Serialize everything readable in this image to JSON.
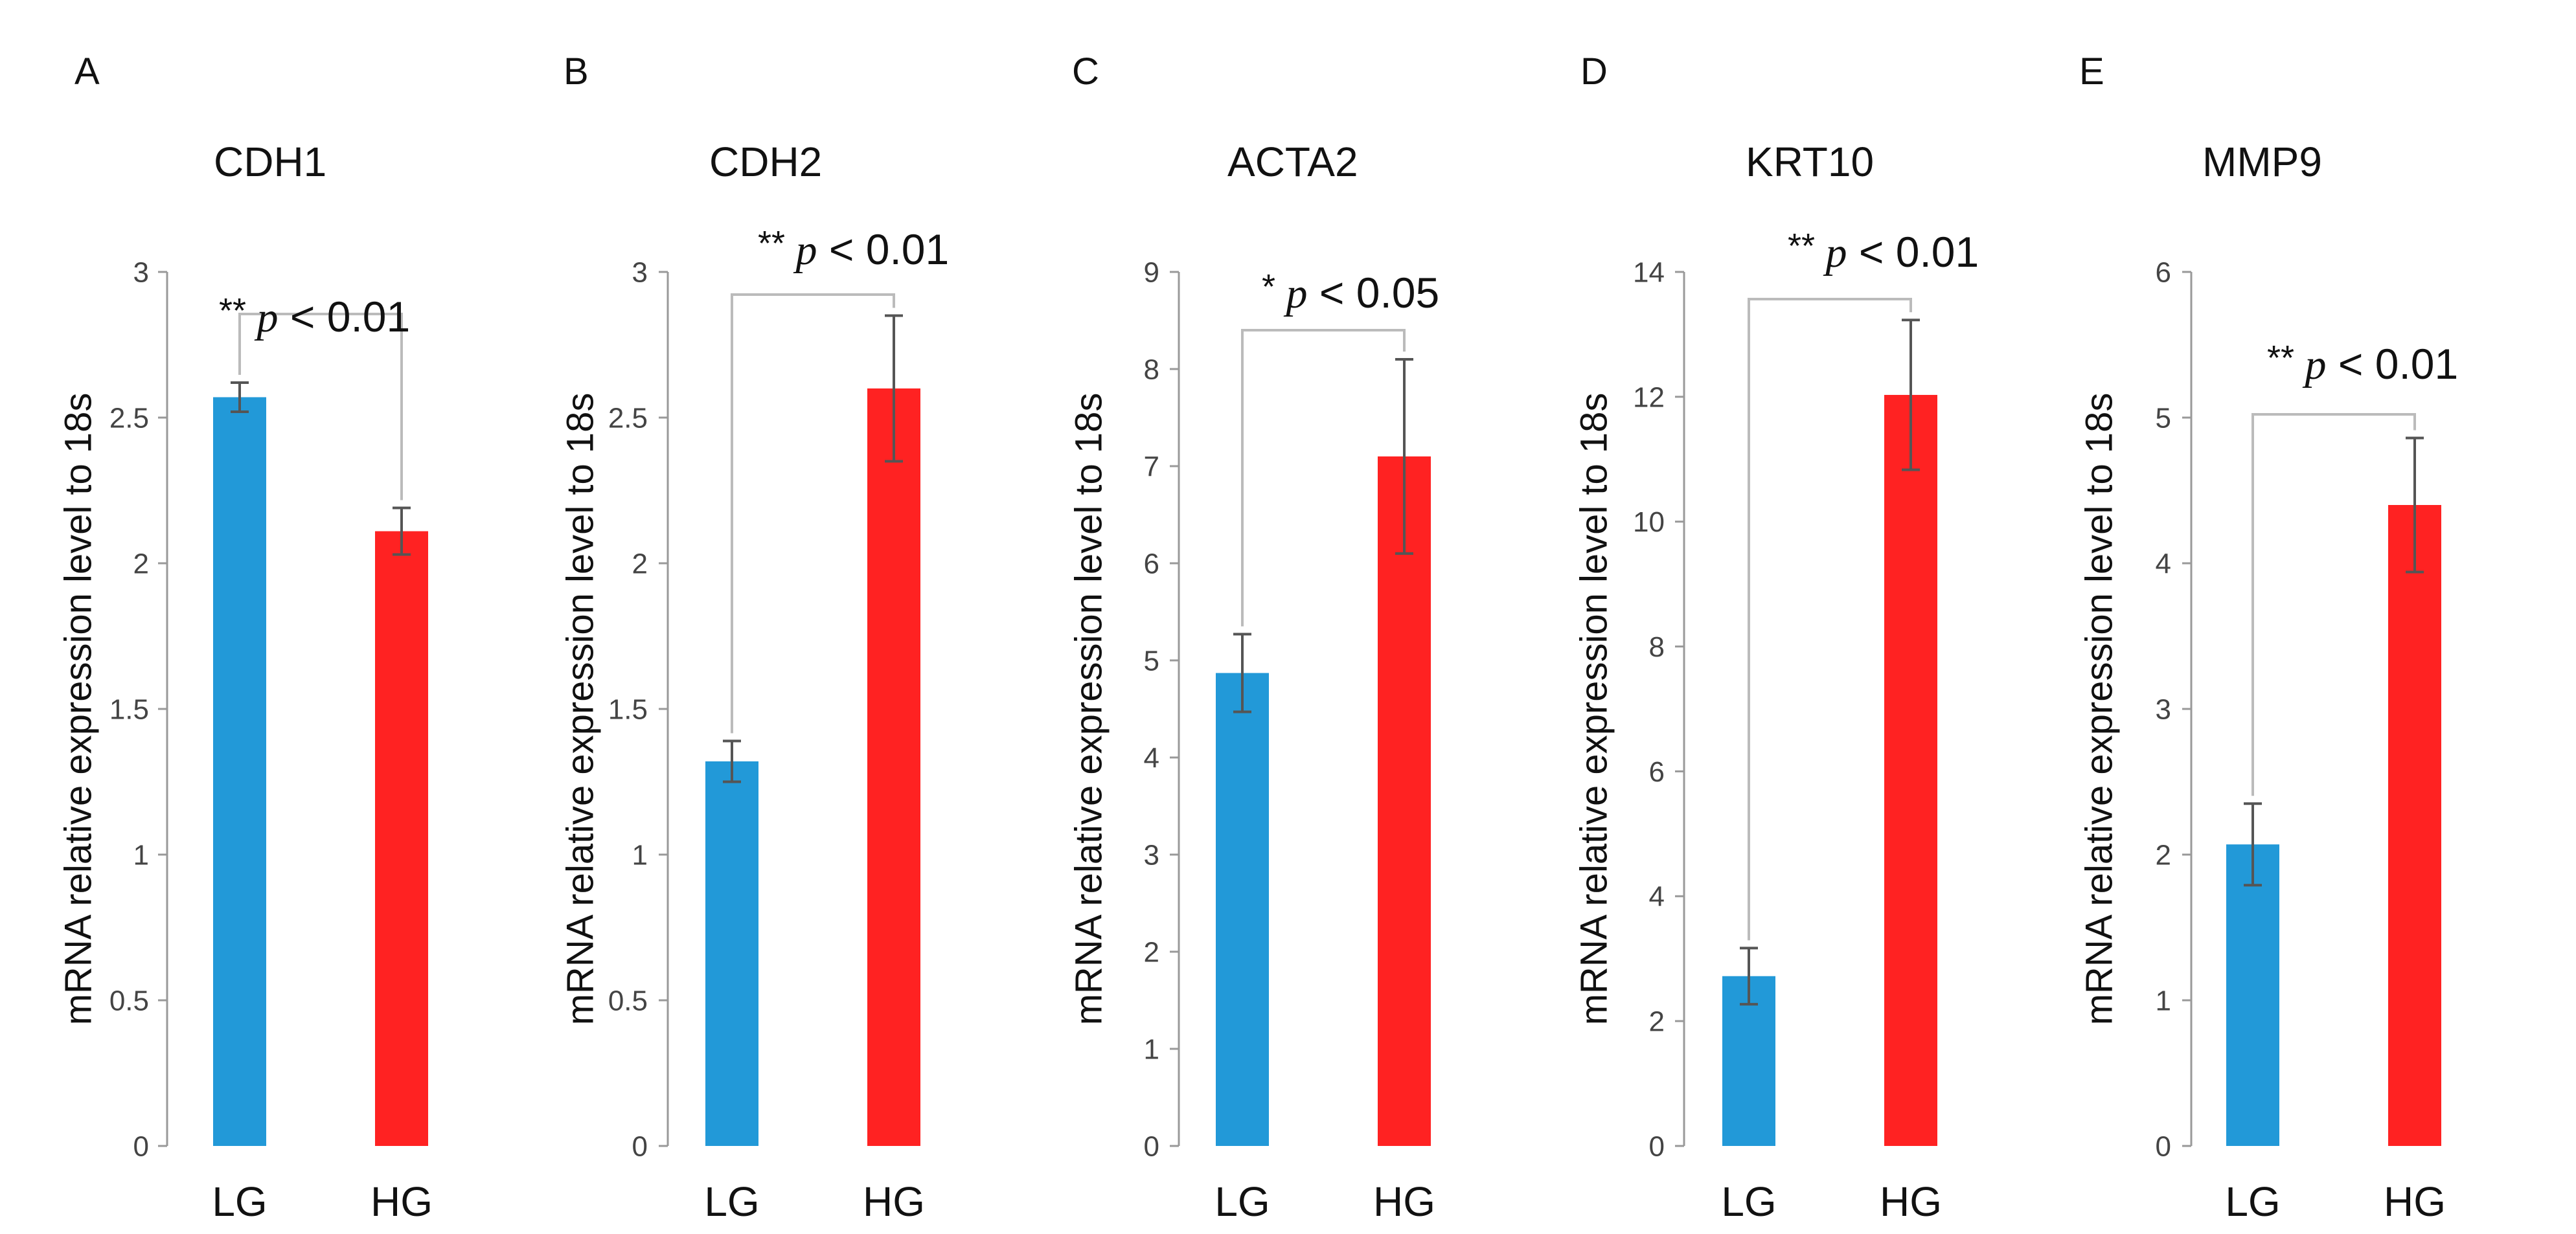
{
  "chart_data": [
    {
      "type": "bar",
      "panel": "A",
      "title": "CDH1",
      "ylabel": "mRNA relative expression level to 18s",
      "categories": [
        "LG",
        "HG"
      ],
      "values": [
        2.57,
        2.11
      ],
      "errors": [
        0.05,
        0.08
      ],
      "colors": [
        "#2299d8",
        "#ff2222"
      ],
      "ylim": [
        0,
        3
      ],
      "yticks": [
        "0",
        "0.5",
        "1",
        "1.5",
        "2",
        "2.5",
        "3"
      ],
      "significance": {
        "stars": "**",
        "p": "p",
        "rest": " < 0.01"
      }
    },
    {
      "type": "bar",
      "panel": "B",
      "title": "CDH2",
      "ylabel": "mRNA relative expression level to 18s",
      "categories": [
        "LG",
        "HG"
      ],
      "values": [
        1.32,
        2.6
      ],
      "errors": [
        0.07,
        0.25
      ],
      "colors": [
        "#2299d8",
        "#ff2222"
      ],
      "ylim": [
        0,
        3
      ],
      "yticks": [
        "0",
        "0.5",
        "1",
        "1.5",
        "2",
        "2.5",
        "3"
      ],
      "significance": {
        "stars": "**",
        "p": "p",
        "rest": " < 0.01"
      }
    },
    {
      "type": "bar",
      "panel": "C",
      "title": "ACTA2",
      "ylabel": "mRNA relative expression level to 18s",
      "categories": [
        "LG",
        "HG"
      ],
      "values": [
        4.87,
        7.1
      ],
      "errors": [
        0.4,
        1.0
      ],
      "colors": [
        "#2299d8",
        "#ff2222"
      ],
      "ylim": [
        0,
        9
      ],
      "yticks": [
        "0",
        "1",
        "2",
        "3",
        "4",
        "5",
        "6",
        "7",
        "8",
        "9"
      ],
      "significance": {
        "stars": "*",
        "p": "p",
        "rest": " < 0.05"
      }
    },
    {
      "type": "bar",
      "panel": "D",
      "title": "KRT10",
      "ylabel": "mRNA relative expression level to 18s",
      "categories": [
        "LG",
        "HG"
      ],
      "values": [
        2.72,
        12.03
      ],
      "errors": [
        0.45,
        1.2
      ],
      "colors": [
        "#2299d8",
        "#ff2222"
      ],
      "ylim": [
        0,
        14
      ],
      "yticks": [
        "0",
        "2",
        "4",
        "6",
        "8",
        "10",
        "12",
        "14"
      ],
      "significance": {
        "stars": "**",
        "p": "p",
        "rest": " < 0.01"
      }
    },
    {
      "type": "bar",
      "panel": "E",
      "title": "MMP9",
      "ylabel": "mRNA relative expression level to 18s",
      "categories": [
        "LG",
        "HG"
      ],
      "values": [
        2.07,
        4.4
      ],
      "errors": [
        0.28,
        0.46
      ],
      "colors": [
        "#2299d8",
        "#ff2222"
      ],
      "ylim": [
        0,
        6
      ],
      "yticks": [
        "0",
        "1",
        "2",
        "3",
        "4",
        "5",
        "6"
      ],
      "significance": {
        "stars": "**",
        "p": "p",
        "rest": " < 0.01"
      }
    }
  ]
}
